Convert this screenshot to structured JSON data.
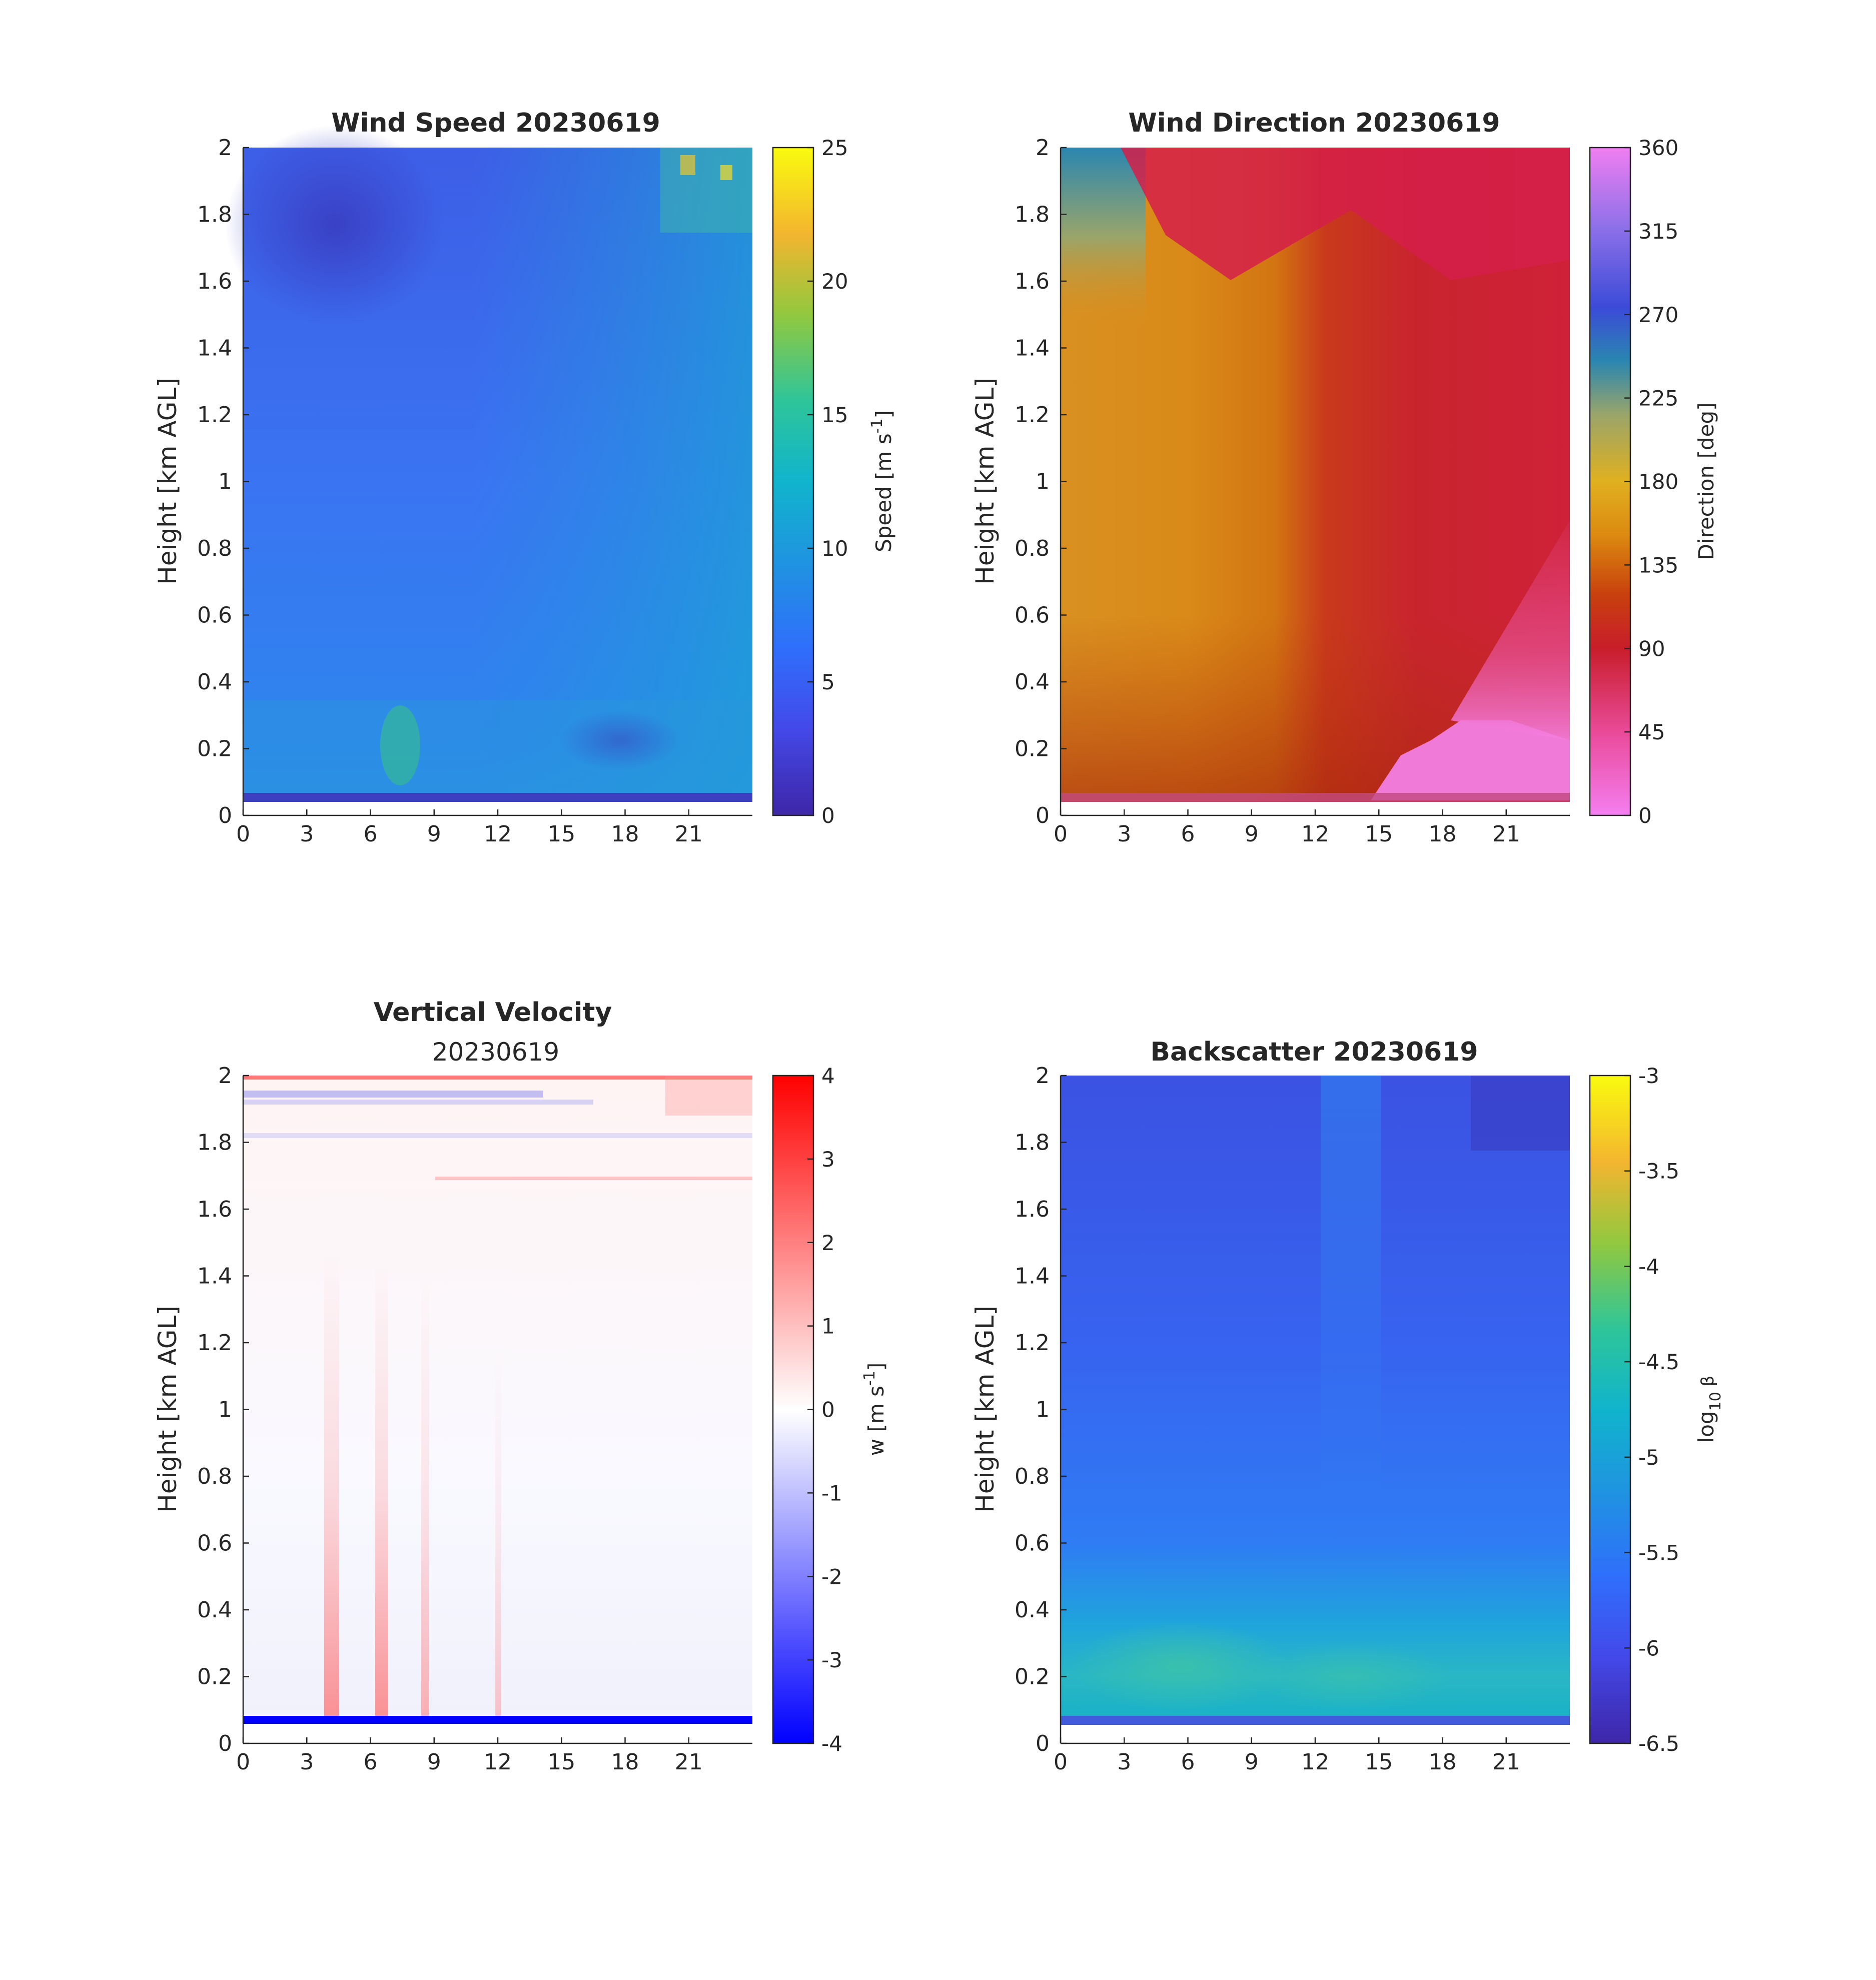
{
  "figure_date": "20230619",
  "chart_data": [
    {
      "id": "wind-speed",
      "type": "heatmap",
      "title": "Wind Speed 20230619",
      "subtitle": "",
      "xlabel": "",
      "ylabel": "Height [km AGL]",
      "xlim": [
        0,
        24
      ],
      "ylim": [
        0,
        2
      ],
      "xticks": [
        "0",
        "3",
        "6",
        "9",
        "12",
        "15",
        "18",
        "21"
      ],
      "yticks": [
        "0",
        "0.2",
        "0.4",
        "0.6",
        "0.8",
        "1",
        "1.2",
        "1.4",
        "1.6",
        "1.8",
        "2"
      ],
      "colorbar": {
        "label_main": "Speed [m s",
        "label_sup": "-1",
        "label_end": "]",
        "range": [
          0,
          25
        ],
        "ticks": [
          "0",
          "5",
          "10",
          "15",
          "20",
          "25"
        ],
        "colormap": "parula"
      }
    },
    {
      "id": "wind-direction",
      "type": "heatmap",
      "title": "Wind Direction 20230619",
      "subtitle": "",
      "xlabel": "",
      "ylabel": "Height [km AGL]",
      "xlim": [
        0,
        24
      ],
      "ylim": [
        0,
        2
      ],
      "xticks": [
        "0",
        "3",
        "6",
        "9",
        "12",
        "15",
        "18",
        "21"
      ],
      "yticks": [
        "0",
        "0.2",
        "0.4",
        "0.6",
        "0.8",
        "1",
        "1.2",
        "1.4",
        "1.6",
        "1.8",
        "2"
      ],
      "colorbar": {
        "label_main": "Direction [deg]",
        "label_sup": "",
        "label_end": "",
        "range": [
          0,
          360
        ],
        "ticks": [
          "0",
          "45",
          "90",
          "135",
          "180",
          "225",
          "270",
          "315",
          "360"
        ],
        "colormap": "cyclic"
      }
    },
    {
      "id": "vertical-velocity",
      "type": "heatmap",
      "title": "Vertical Velocity",
      "subtitle": "20230619",
      "xlabel": "",
      "ylabel": "Height [km AGL]",
      "xlim": [
        0,
        24
      ],
      "ylim": [
        0,
        2
      ],
      "xticks": [
        "0",
        "3",
        "6",
        "9",
        "12",
        "15",
        "18",
        "21"
      ],
      "yticks": [
        "0",
        "0.2",
        "0.4",
        "0.6",
        "0.8",
        "1",
        "1.2",
        "1.4",
        "1.6",
        "1.8",
        "2"
      ],
      "colorbar": {
        "label_main": "w [m s",
        "label_sup": "-1",
        "label_end": "]",
        "range": [
          -4,
          4
        ],
        "ticks": [
          "-4",
          "-3",
          "-2",
          "-1",
          "0",
          "1",
          "2",
          "3",
          "4"
        ],
        "colormap": "blue-white-red"
      }
    },
    {
      "id": "backscatter",
      "type": "heatmap",
      "title": "Backscatter 20230619",
      "subtitle": "",
      "xlabel": "",
      "ylabel": "Height [km AGL]",
      "xlim": [
        0,
        24
      ],
      "ylim": [
        0,
        2
      ],
      "xticks": [
        "0",
        "3",
        "6",
        "9",
        "12",
        "15",
        "18",
        "21"
      ],
      "yticks": [
        "0",
        "0.2",
        "0.4",
        "0.6",
        "0.8",
        "1",
        "1.2",
        "1.4",
        "1.6",
        "1.8",
        "2"
      ],
      "colorbar": {
        "label_main": "log",
        "label_sub": "10",
        "label_end": " β",
        "range": [
          -6.5,
          -3
        ],
        "ticks": [
          "-6.5",
          "-6",
          "-5.5",
          "-5",
          "-4.5",
          "-4",
          "-3.5",
          "-3"
        ],
        "colormap": "parula"
      }
    }
  ]
}
